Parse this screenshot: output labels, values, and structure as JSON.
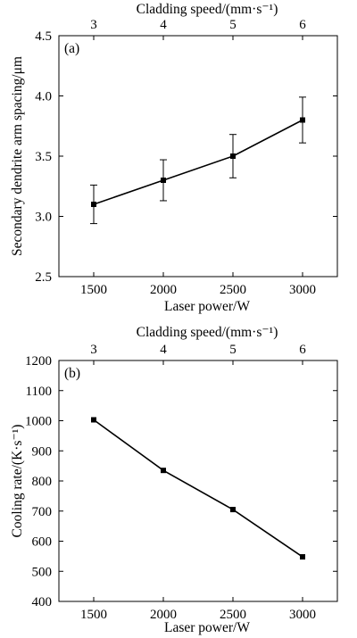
{
  "chart_data": [
    {
      "type": "line",
      "panel_label": "(a)",
      "xlabel": "Laser power/W",
      "x2label": "Cladding speed/(mm·s⁻¹)",
      "ylabel": "Secondary dendrite arm spacing/μm",
      "x": [
        1500,
        2000,
        2500,
        3000
      ],
      "x_ticks": [
        "1500",
        "2000",
        "2500",
        "3000"
      ],
      "x2_ticks": [
        "3",
        "4",
        "5",
        "6"
      ],
      "ylim": [
        2.5,
        4.5
      ],
      "y_ticks": [
        "2.5",
        "3.0",
        "3.5",
        "4.0",
        "4.5"
      ],
      "series": [
        {
          "values": [
            3.1,
            3.3,
            3.5,
            3.8
          ],
          "errors": [
            0.16,
            0.17,
            0.18,
            0.19
          ]
        }
      ],
      "grid": false
    },
    {
      "type": "line",
      "panel_label": "(b)",
      "xlabel": "Laser power/W",
      "x2label": "Cladding speed/(mm·s⁻¹)",
      "ylabel": "Cooling rate/(K·s⁻¹)",
      "x": [
        1500,
        2000,
        2500,
        3000
      ],
      "x_ticks": [
        "1500",
        "2000",
        "2500",
        "3000"
      ],
      "x2_ticks": [
        "3",
        "4",
        "5",
        "6"
      ],
      "ylim": [
        400,
        1200
      ],
      "y_ticks": [
        "400",
        "500",
        "600",
        "700",
        "800",
        "900",
        "1000",
        "1100",
        "1200"
      ],
      "series": [
        {
          "values": [
            1003,
            835,
            705,
            548
          ]
        }
      ],
      "grid": false
    }
  ]
}
